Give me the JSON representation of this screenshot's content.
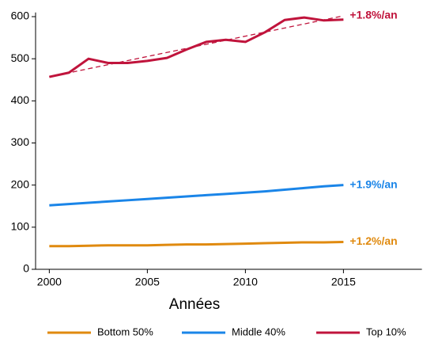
{
  "chart_data": {
    "type": "line",
    "x_label": "Années",
    "x": [
      2000,
      2001,
      2002,
      2003,
      2004,
      2005,
      2006,
      2007,
      2008,
      2009,
      2010,
      2011,
      2012,
      2013,
      2014,
      2015
    ],
    "series": [
      {
        "name": "Bottom 50%",
        "color": "#e08a0f",
        "annotation": "+1.2%/an",
        "values": [
          55,
          55,
          56,
          57,
          57,
          57,
          58,
          59,
          59,
          60,
          61,
          62,
          63,
          64,
          64,
          65
        ]
      },
      {
        "name": "Middle 40%",
        "color": "#1a85e8",
        "annotation": "+1.9%/an",
        "values": [
          152,
          155,
          158,
          161,
          164,
          167,
          170,
          173,
          176,
          179,
          182,
          185,
          189,
          193,
          197,
          200
        ]
      },
      {
        "name": "Top 10%",
        "color": "#c0143c",
        "annotation": "+1.8%/an",
        "values": [
          457,
          467,
          500,
          490,
          490,
          495,
          502,
          522,
          540,
          545,
          540,
          563,
          592,
          598,
          591,
          593
        ],
        "trend": {
          "x": [
            2000,
            2015
          ],
          "values": [
            457,
            602
          ]
        }
      }
    ],
    "xlim": [
      1999.3,
      2019
    ],
    "ylim": [
      0,
      610
    ],
    "xticks": [
      2000,
      2005,
      2010,
      2015
    ],
    "yticks": [
      0,
      100,
      200,
      300,
      400,
      500,
      600
    ],
    "grid": false
  }
}
